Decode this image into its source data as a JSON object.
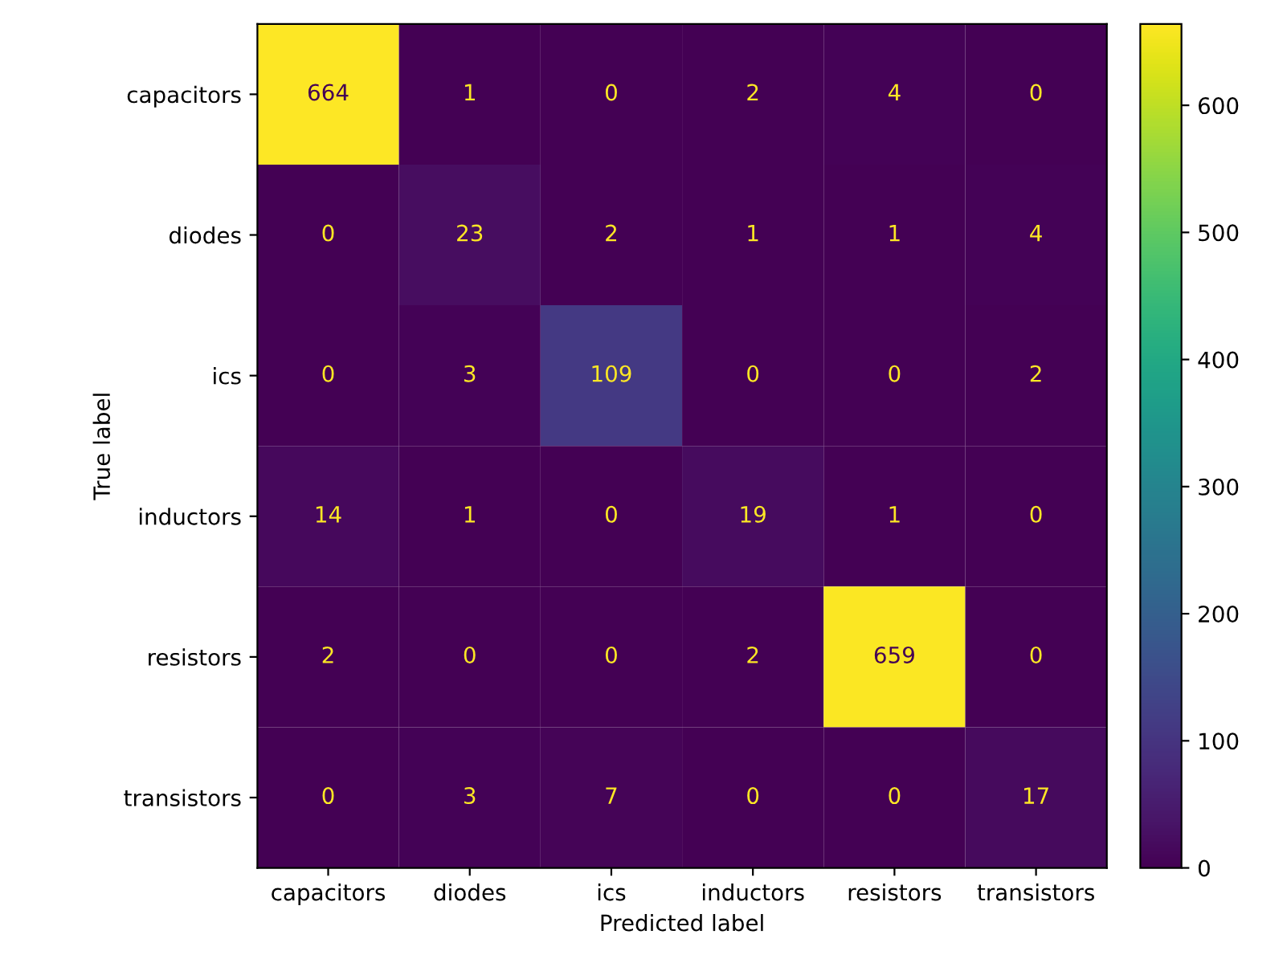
{
  "chart_data": {
    "type": "heatmap",
    "categories": [
      "capacitors",
      "diodes",
      "ics",
      "inductors",
      "resistors",
      "transistors"
    ],
    "y_categories": [
      "capacitors",
      "diodes",
      "ics",
      "inductors",
      "resistors",
      "transistors"
    ],
    "cells": [
      [
        664,
        1,
        0,
        2,
        4,
        0
      ],
      [
        0,
        23,
        2,
        1,
        1,
        4
      ],
      [
        0,
        3,
        109,
        0,
        0,
        2
      ],
      [
        14,
        1,
        0,
        19,
        1,
        0
      ],
      [
        2,
        0,
        0,
        2,
        659,
        0
      ],
      [
        0,
        3,
        7,
        0,
        0,
        17
      ]
    ],
    "xlabel": "Predicted label",
    "ylabel": "True label",
    "clim": [
      0,
      664
    ],
    "cticks": [
      0,
      100,
      200,
      300,
      400,
      500,
      600
    ],
    "data_labels": true
  }
}
